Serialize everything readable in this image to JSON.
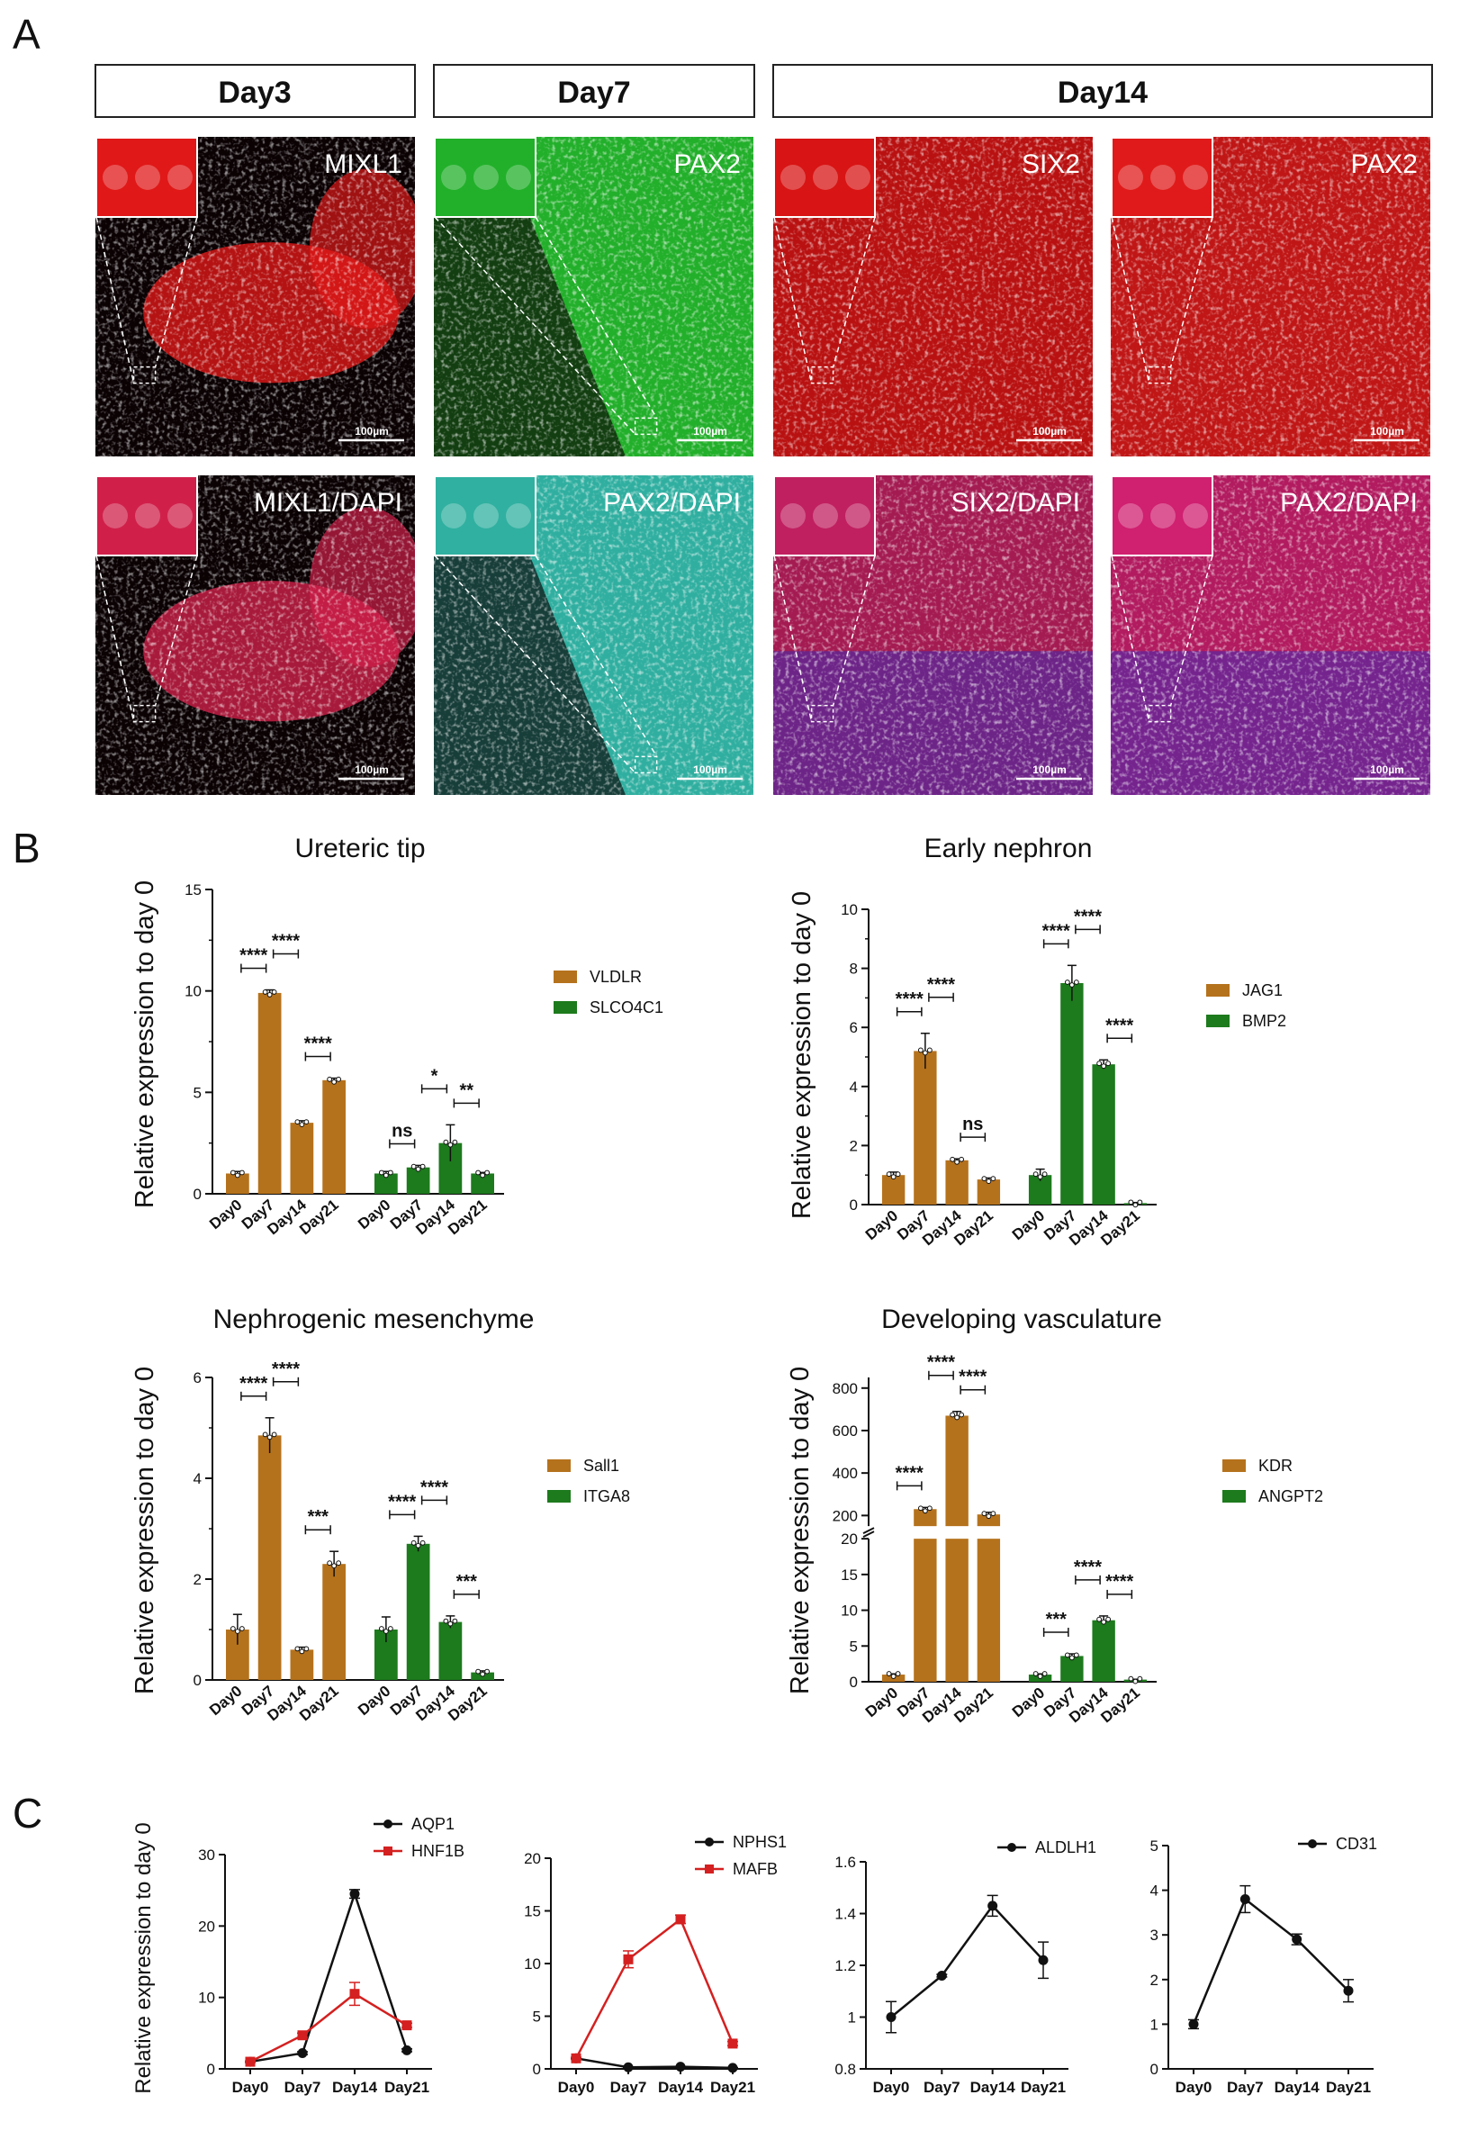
{
  "panelA": {
    "letter": "A",
    "days": [
      "Day3",
      "Day7",
      "Day14"
    ],
    "images": [
      {
        "label": "MIXL1",
        "scale": "100µm",
        "color": "#e01818"
      },
      {
        "label": "PAX2",
        "scale": "100µm",
        "color": "#22b02a"
      },
      {
        "label": "SIX2",
        "scale": "100µm",
        "color": "#d81414"
      },
      {
        "label": "PAX2",
        "scale": "100µm",
        "color": "#e01a1a"
      },
      {
        "label": "MIXL1/DAPI",
        "scale": "100µm",
        "color": "#d0204a"
      },
      {
        "label": "PAX2/DAPI",
        "scale": "100µm",
        "color": "#30b0a0"
      },
      {
        "label": "SIX2/DAPI",
        "scale": "100µm",
        "color": "#c02060"
      },
      {
        "label": "PAX2/DAPI",
        "scale": "100µm",
        "color": "#d02070"
      }
    ]
  },
  "panelB": {
    "letter": "B"
  },
  "panelC": {
    "letter": "C"
  },
  "colors": {
    "brown": "#b5721c",
    "green": "#1d7a1d",
    "red": "#d42020",
    "black": "#111111"
  },
  "chart_data": [
    {
      "type": "bar",
      "title": "Ureteric tip",
      "ylabel": "Relative expression to day 0",
      "ylim": [
        0,
        15
      ],
      "yticks": [
        0,
        5,
        10,
        15
      ],
      "categories": [
        "Day0",
        "Day7",
        "Day14",
        "Day21"
      ],
      "series": [
        {
          "name": "VLDLR",
          "values": [
            1.0,
            9.9,
            3.5,
            5.6
          ],
          "err": [
            0.1,
            0.15,
            0.1,
            0.1
          ],
          "color": "#b5721c"
        },
        {
          "name": "SLCO4C1",
          "values": [
            1.0,
            1.3,
            2.5,
            1.0
          ],
          "err": [
            0.1,
            0.1,
            0.9,
            0.05
          ],
          "color": "#1d7a1d"
        }
      ],
      "significance": [
        {
          "series": 0,
          "from": 0,
          "to": 1,
          "label": "****"
        },
        {
          "series": 0,
          "from": 1,
          "to": 2,
          "label": "****"
        },
        {
          "series": 0,
          "from": 2,
          "to": 3,
          "label": "****"
        },
        {
          "series": 1,
          "from": 0,
          "to": 1,
          "label": "ns"
        },
        {
          "series": 1,
          "from": 1,
          "to": 2,
          "label": "*"
        },
        {
          "series": 1,
          "from": 2,
          "to": 3,
          "label": "**"
        }
      ]
    },
    {
      "type": "bar",
      "title": "Early nephron",
      "ylabel": "Relative expression to day 0",
      "ylim": [
        0,
        10
      ],
      "yticks": [
        0,
        2,
        4,
        6,
        8,
        10
      ],
      "categories": [
        "Day0",
        "Day7",
        "Day14",
        "Day21"
      ],
      "series": [
        {
          "name": "JAG1",
          "values": [
            1.0,
            5.2,
            1.5,
            0.85
          ],
          "err": [
            0.1,
            0.6,
            0.05,
            0.05
          ],
          "color": "#b5721c"
        },
        {
          "name": "BMP2",
          "values": [
            1.0,
            7.5,
            4.75,
            0.05
          ],
          "err": [
            0.2,
            0.6,
            0.15,
            0.02
          ],
          "color": "#1d7a1d"
        }
      ],
      "significance": [
        {
          "series": 0,
          "from": 0,
          "to": 1,
          "label": "****"
        },
        {
          "series": 0,
          "from": 1,
          "to": 2,
          "label": "****"
        },
        {
          "series": 0,
          "from": 2,
          "to": 3,
          "label": "ns"
        },
        {
          "series": 1,
          "from": 0,
          "to": 1,
          "label": "****"
        },
        {
          "series": 1,
          "from": 1,
          "to": 2,
          "label": "****"
        },
        {
          "series": 1,
          "from": 2,
          "to": 3,
          "label": "****"
        }
      ]
    },
    {
      "type": "bar",
      "title": "Nephrogenic mesenchyme",
      "ylabel": "Relative expression to day 0",
      "ylim": [
        0,
        6
      ],
      "yticks": [
        0,
        2,
        4,
        6
      ],
      "categories": [
        "Day0",
        "Day7",
        "Day14",
        "Day21"
      ],
      "series": [
        {
          "name": "Sall1",
          "values": [
            1.0,
            4.85,
            0.6,
            2.3
          ],
          "err": [
            0.3,
            0.35,
            0.05,
            0.25
          ],
          "color": "#b5721c"
        },
        {
          "name": "ITGA8",
          "values": [
            1.0,
            2.7,
            1.15,
            0.15
          ],
          "err": [
            0.25,
            0.15,
            0.12,
            0.03
          ],
          "color": "#1d7a1d"
        }
      ],
      "significance": [
        {
          "series": 0,
          "from": 0,
          "to": 1,
          "label": "****"
        },
        {
          "series": 0,
          "from": 1,
          "to": 2,
          "label": "****"
        },
        {
          "series": 0,
          "from": 2,
          "to": 3,
          "label": "***"
        },
        {
          "series": 1,
          "from": 0,
          "to": 1,
          "label": "****"
        },
        {
          "series": 1,
          "from": 1,
          "to": 2,
          "label": "****"
        },
        {
          "series": 1,
          "from": 2,
          "to": 3,
          "label": "***"
        }
      ]
    },
    {
      "type": "bar",
      "title": "Developing vasculature",
      "ylabel": "Relative expression to day 0",
      "ylim": [
        0,
        850
      ],
      "axis_break": {
        "low": [
          0,
          20
        ],
        "high": [
          150,
          850
        ]
      },
      "yticks_low": [
        0,
        5,
        10,
        15,
        20
      ],
      "yticks_high": [
        200,
        400,
        600,
        800
      ],
      "categories": [
        "Day0",
        "Day7",
        "Day14",
        "Day21"
      ],
      "series": [
        {
          "name": "KDR",
          "values": [
            1.0,
            230,
            670,
            205
          ],
          "err": [
            0.1,
            8,
            20,
            10
          ],
          "color": "#b5721c"
        },
        {
          "name": "ANGPT2",
          "values": [
            1.0,
            3.6,
            8.6,
            0.3
          ],
          "err": [
            0.1,
            0.3,
            0.6,
            0.05
          ],
          "color": "#1d7a1d"
        }
      ],
      "significance": [
        {
          "series": 0,
          "from": 0,
          "to": 1,
          "label": "****"
        },
        {
          "series": 0,
          "from": 1,
          "to": 2,
          "label": "****"
        },
        {
          "series": 0,
          "from": 2,
          "to": 3,
          "label": "****"
        },
        {
          "series": 1,
          "from": 0,
          "to": 1,
          "label": "***"
        },
        {
          "series": 1,
          "from": 1,
          "to": 2,
          "label": "****"
        },
        {
          "series": 1,
          "from": 2,
          "to": 3,
          "label": "****"
        }
      ]
    },
    {
      "type": "line",
      "ylabel": "Relative expression to day 0",
      "ylim": [
        0,
        30
      ],
      "yticks": [
        0,
        10,
        20,
        30
      ],
      "x": [
        "Day0",
        "Day7",
        "Day14",
        "Day21"
      ],
      "series": [
        {
          "name": "AQP1",
          "values": [
            1.0,
            2.2,
            24.5,
            2.6
          ],
          "err": [
            0.1,
            0.2,
            0.6,
            0.2
          ],
          "color": "#111111",
          "marker": "circle"
        },
        {
          "name": "HNF1B",
          "values": [
            1.0,
            4.7,
            10.5,
            6.1
          ],
          "err": [
            0.1,
            0.3,
            1.6,
            0.3
          ],
          "color": "#d42020",
          "marker": "square"
        }
      ]
    },
    {
      "type": "line",
      "ylim": [
        0,
        20
      ],
      "yticks": [
        0,
        5,
        10,
        15,
        20
      ],
      "x": [
        "Day0",
        "Day7",
        "Day14",
        "Day21"
      ],
      "series": [
        {
          "name": "NPHS1",
          "values": [
            1.0,
            0.15,
            0.2,
            0.1
          ],
          "err": [
            0.05,
            0.03,
            0.03,
            0.02
          ],
          "color": "#111111",
          "marker": "circle"
        },
        {
          "name": "MAFB",
          "values": [
            1.0,
            10.4,
            14.2,
            2.4
          ],
          "err": [
            0.1,
            0.8,
            0.4,
            0.2
          ],
          "color": "#d42020",
          "marker": "square"
        }
      ]
    },
    {
      "type": "line",
      "ylim": [
        0.8,
        1.6
      ],
      "yticks": [
        0.8,
        1.0,
        1.2,
        1.4,
        1.6
      ],
      "x": [
        "Day0",
        "Day7",
        "Day14",
        "Day21"
      ],
      "series": [
        {
          "name": "ALDLH1",
          "values": [
            1.0,
            1.16,
            1.43,
            1.22
          ],
          "err": [
            0.06,
            0.005,
            0.04,
            0.07
          ],
          "color": "#111111",
          "marker": "circle"
        }
      ]
    },
    {
      "type": "line",
      "ylim": [
        0,
        5
      ],
      "yticks": [
        0,
        1,
        2,
        3,
        4,
        5
      ],
      "x": [
        "Day0",
        "Day7",
        "Day14",
        "Day21"
      ],
      "series": [
        {
          "name": "CD31",
          "values": [
            1.0,
            3.8,
            2.9,
            1.75
          ],
          "err": [
            0.1,
            0.3,
            0.12,
            0.25
          ],
          "color": "#111111",
          "marker": "circle"
        }
      ]
    }
  ]
}
